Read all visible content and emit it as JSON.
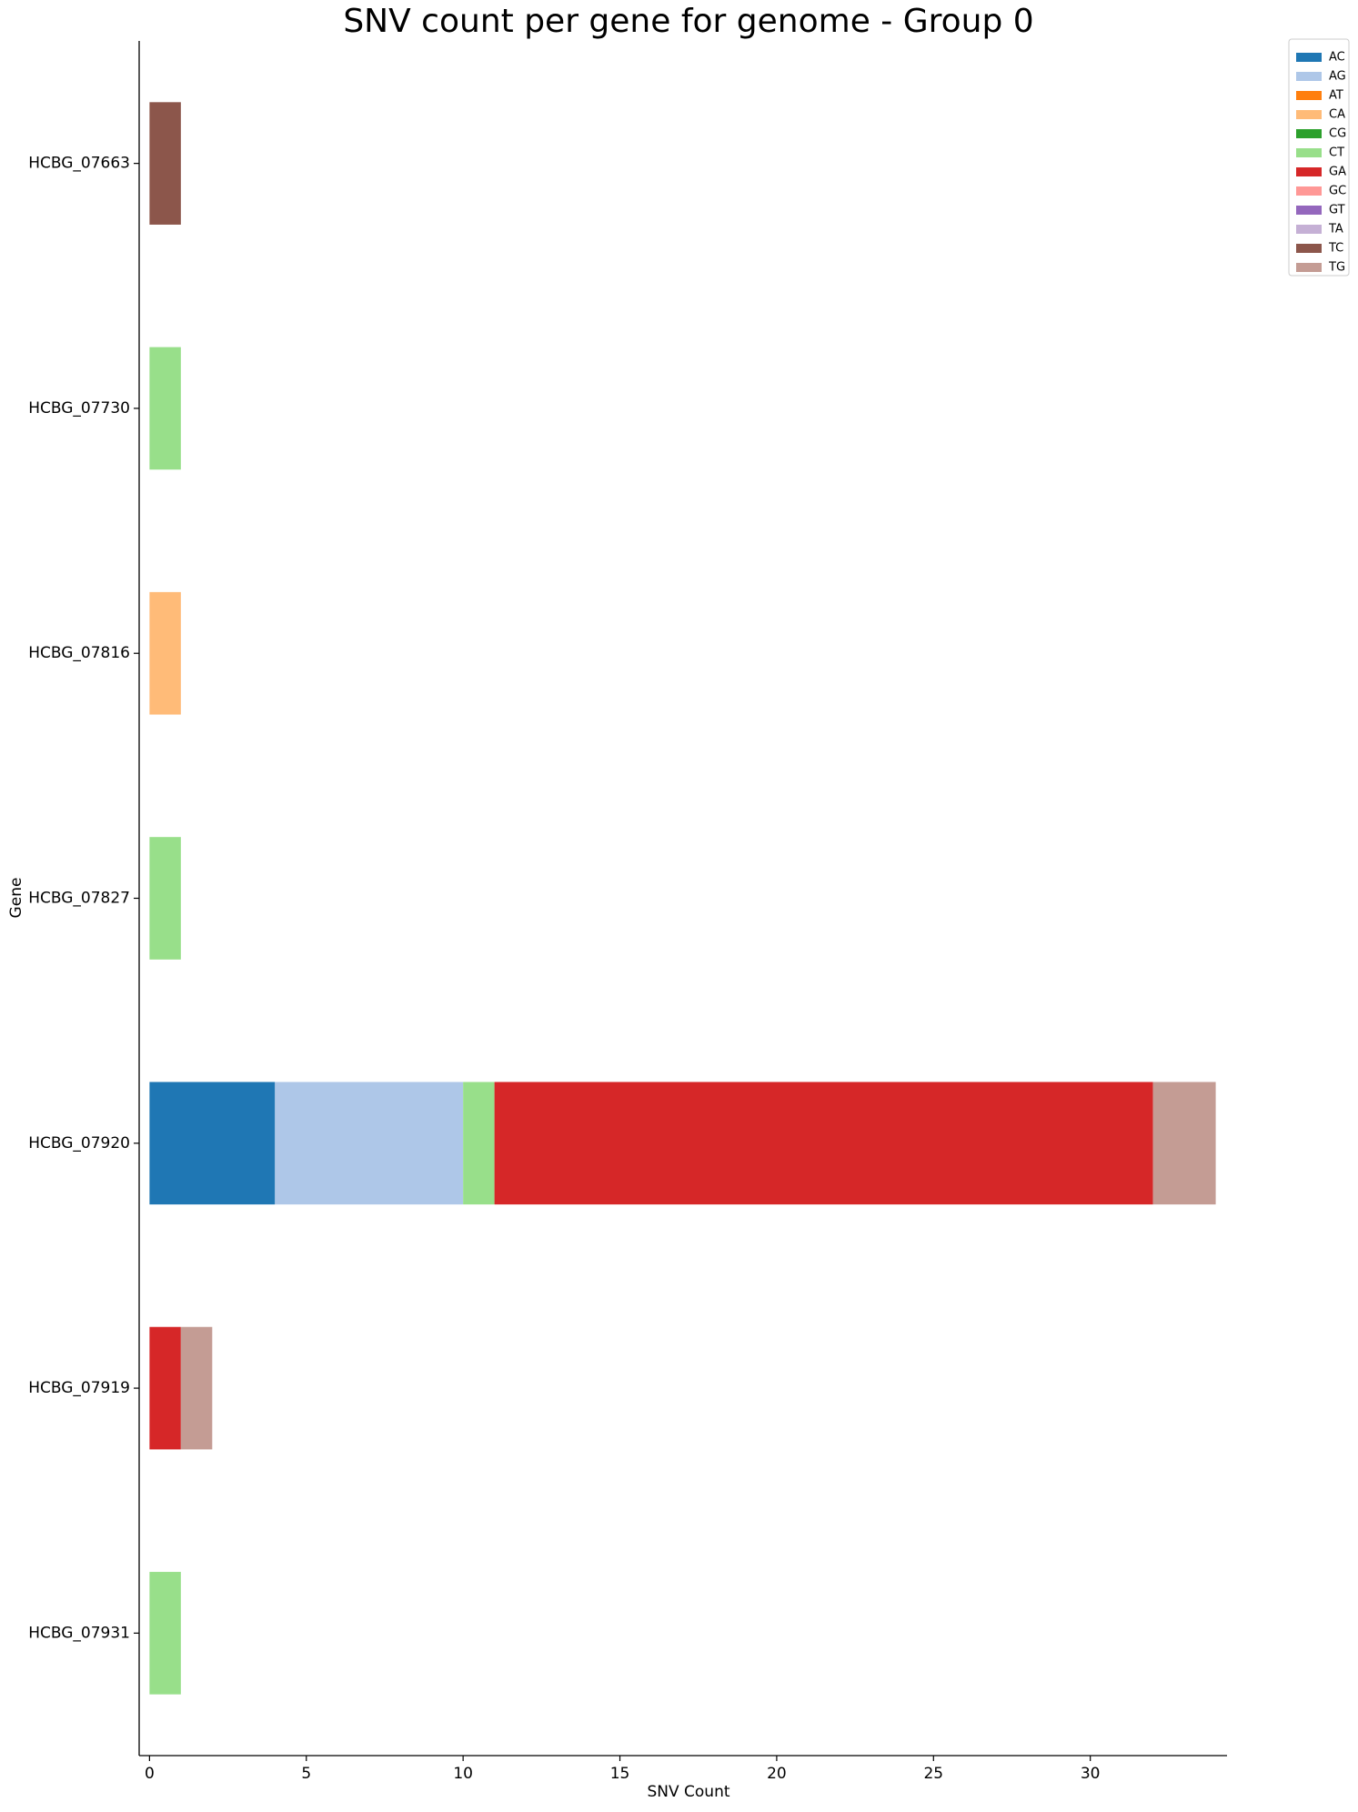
{
  "chart_data": {
    "type": "stacked_barh",
    "title": "SNV count per gene for genome - Group 0",
    "xlabel": "SNV Count",
    "ylabel": "Gene",
    "categories": [
      "HCBG_07663",
      "HCBG_07730",
      "HCBG_07816",
      "HCBG_07827",
      "HCBG_07920",
      "HCBG_07919",
      "HCBG_07931"
    ],
    "series": [
      {
        "name": "AC",
        "color": "#1f77b4",
        "values": [
          0,
          0,
          0,
          0,
          4,
          0,
          0
        ]
      },
      {
        "name": "AG",
        "color": "#aec7e8",
        "values": [
          0,
          0,
          0,
          0,
          6,
          0,
          0
        ]
      },
      {
        "name": "AT",
        "color": "#ff7f0e",
        "values": [
          0,
          0,
          0,
          0,
          0,
          0,
          0
        ]
      },
      {
        "name": "CA",
        "color": "#ffbb78",
        "values": [
          0,
          0,
          1,
          0,
          0,
          0,
          0
        ]
      },
      {
        "name": "CG",
        "color": "#2ca02c",
        "values": [
          0,
          0,
          0,
          0,
          0,
          0,
          0
        ]
      },
      {
        "name": "CT",
        "color": "#98df8a",
        "values": [
          0,
          1,
          0,
          1,
          1,
          0,
          1
        ]
      },
      {
        "name": "GA",
        "color": "#d62728",
        "values": [
          0,
          0,
          0,
          0,
          21,
          1,
          0
        ]
      },
      {
        "name": "GC",
        "color": "#ff9896",
        "values": [
          0,
          0,
          0,
          0,
          0,
          0,
          0
        ]
      },
      {
        "name": "GT",
        "color": "#9467bd",
        "values": [
          0,
          0,
          0,
          0,
          0,
          0,
          0
        ]
      },
      {
        "name": "TA",
        "color": "#c5b0d5",
        "values": [
          0,
          0,
          0,
          0,
          0,
          0,
          0
        ]
      },
      {
        "name": "TC",
        "color": "#8c564b",
        "values": [
          1,
          0,
          0,
          0,
          0,
          0,
          0
        ]
      },
      {
        "name": "TG",
        "color": "#c49c94",
        "values": [
          0,
          0,
          0,
          0,
          2,
          1,
          0
        ]
      }
    ],
    "xlim": [
      -0.33,
      34.36
    ],
    "xticks": [
      0,
      5,
      10,
      15,
      20,
      25,
      30
    ],
    "legend": "upper right outside"
  }
}
